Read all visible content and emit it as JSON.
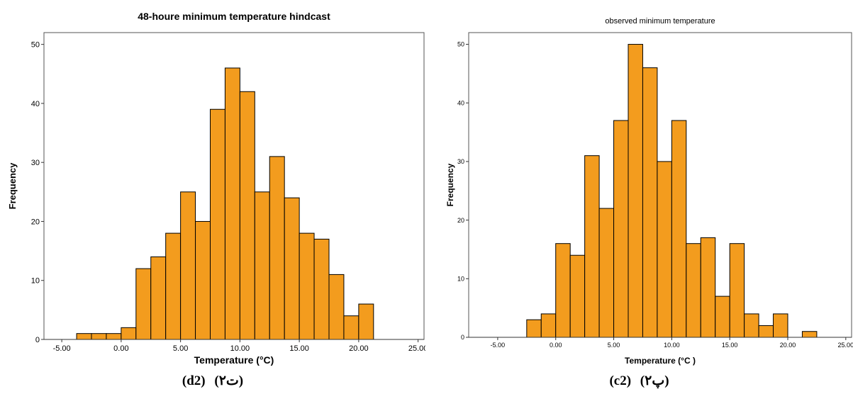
{
  "chart_data": [
    {
      "type": "bar",
      "title": "48-houre minimum temperature hindcast",
      "xlabel": "Temperature (°C)",
      "ylabel": "Frequency",
      "xlim": [
        -6.5,
        25.5
      ],
      "ylim": [
        0,
        52
      ],
      "xticks": [
        -5,
        0,
        5,
        10,
        15,
        20,
        25
      ],
      "xtick_labels": [
        "-5.00",
        "0.00",
        "5.00",
        "10.00",
        "15.00",
        "20.00",
        "25.00"
      ],
      "yticks": [
        0,
        10,
        20,
        30,
        40,
        50
      ],
      "bin_edges": [
        -3.75,
        -2.5,
        -1.25,
        0,
        1.25,
        2.5,
        3.75,
        5,
        6.25,
        7.5,
        8.75,
        10,
        11.25,
        12.5,
        13.75,
        15,
        16.25,
        17.5,
        18.75,
        20,
        21.25
      ],
      "values": [
        1,
        1,
        1,
        2,
        12,
        14,
        18,
        25,
        20,
        39,
        46,
        42,
        25,
        31,
        24,
        18,
        17,
        11,
        4,
        6
      ],
      "bar_color": "#f39c1e",
      "grid": false,
      "caption_parts": [
        "(d2)",
        "(ت۲)"
      ]
    },
    {
      "type": "bar",
      "title": "observed minimum temperature",
      "xlabel": "Temperature (°C )",
      "ylabel": "Frequency",
      "xlim": [
        -7.5,
        25.5
      ],
      "ylim": [
        0,
        52
      ],
      "xticks": [
        -5,
        0,
        5,
        10,
        15,
        20,
        25
      ],
      "xtick_labels": [
        "-5.00",
        "0.00",
        "5.00",
        "10.00",
        "15.00",
        "20.00",
        "25.00"
      ],
      "yticks": [
        0,
        10,
        20,
        30,
        40,
        50
      ],
      "bin_edges": [
        -2.5,
        -1.25,
        0,
        1.25,
        2.5,
        3.75,
        5,
        6.25,
        7.5,
        8.75,
        10,
        11.25,
        12.5,
        13.75,
        15,
        16.25,
        17.5,
        18.75,
        20,
        21.25,
        22.5
      ],
      "values": [
        3,
        4,
        16,
        14,
        31,
        22,
        37,
        50,
        46,
        30,
        37,
        16,
        17,
        7,
        16,
        4,
        2,
        4,
        0,
        1
      ],
      "bar_color": "#f39c1e",
      "grid": false,
      "caption_parts": [
        "(c2)",
        "(پ۲)"
      ]
    }
  ]
}
